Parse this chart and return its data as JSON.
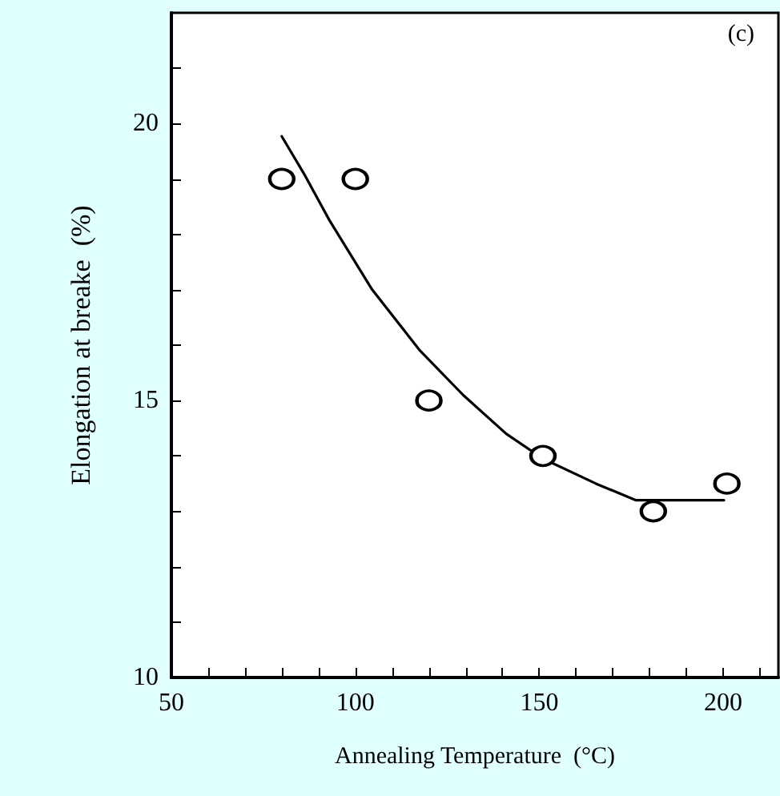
{
  "chart_data": {
    "type": "scatter",
    "xlabel": "Annealing Temperature  (°C)",
    "ylabel": "Elongation at breake  (%)",
    "annotations": [
      "(c)"
    ],
    "xlim": [
      50,
      215
    ],
    "ylim": [
      10,
      22
    ],
    "xticks": [
      50,
      {
        "value": 60,
        "label": null
      },
      {
        "value": 70,
        "label": null
      },
      {
        "value": 80,
        "label": null
      },
      {
        "value": 90,
        "label": null
      },
      100,
      {
        "value": 110,
        "label": null
      },
      {
        "value": 120,
        "label": null
      },
      {
        "value": 130,
        "label": null
      },
      {
        "value": 140,
        "label": null
      },
      150,
      {
        "value": 160,
        "label": null
      },
      {
        "value": 170,
        "label": null
      },
      {
        "value": 180,
        "label": null
      },
      {
        "value": 190,
        "label": null
      },
      200,
      {
        "value": 210,
        "label": null
      }
    ],
    "yticks": [
      10,
      {
        "value": 11,
        "label": null
      },
      {
        "value": 12,
        "label": null
      },
      {
        "value": 13,
        "label": null
      },
      {
        "value": 14,
        "label": null
      },
      15,
      {
        "value": 16,
        "label": null
      },
      {
        "value": 17,
        "label": null
      },
      {
        "value": 18,
        "label": null
      },
      {
        "value": 19,
        "label": null
      },
      20,
      {
        "value": 21,
        "label": null
      }
    ],
    "grid": false,
    "series": [
      {
        "type": "scatter",
        "color": "#000000",
        "marker": "circle",
        "x": [
          80,
          100,
          120,
          151,
          181,
          201
        ],
        "values": [
          19,
          19,
          15,
          14,
          13,
          13.5
        ]
      },
      {
        "type": "line",
        "color": "#000000",
        "marker": "none",
        "line_style": "solid",
        "x": [
          80,
          86,
          93,
          104.6,
          117.6,
          129.3,
          141,
          151,
          165.4,
          176.3,
          200.2
        ],
        "values": [
          19.77,
          19.1,
          18.25,
          17,
          15.9,
          15.1,
          14.4,
          13.95,
          13.5,
          13.2,
          13.2
        ]
      }
    ]
  }
}
